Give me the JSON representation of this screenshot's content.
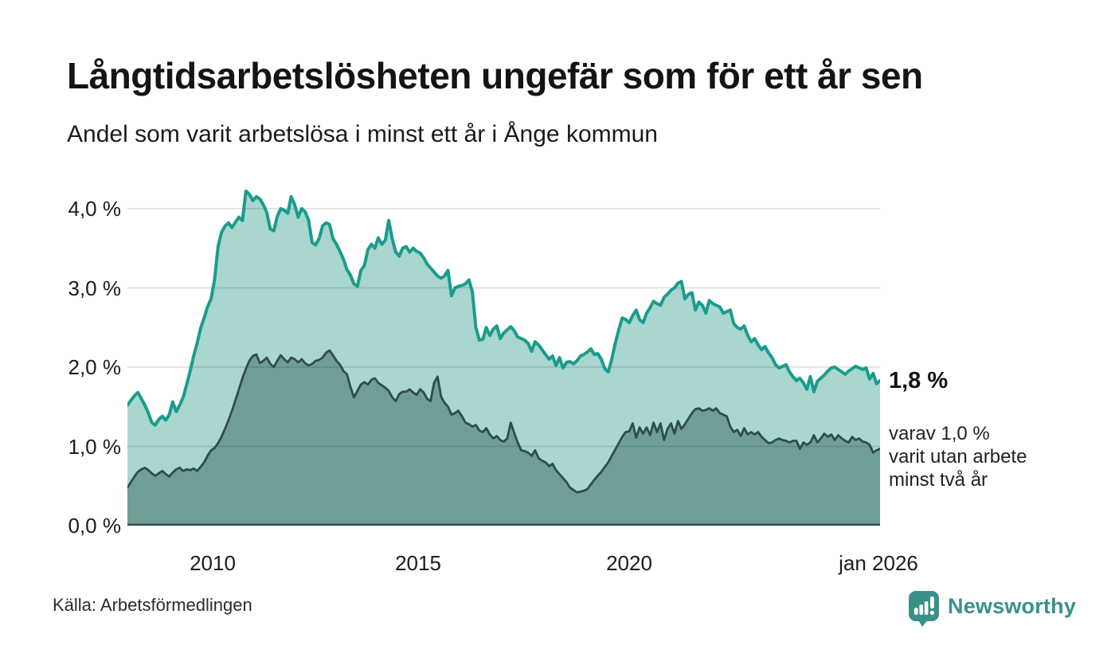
{
  "header": {
    "title": "Långtidsarbetslösheten ungefär som för ett år sen",
    "subtitle": "Andel som varit arbetslösa i minst ett år i Ånge kommun"
  },
  "chart": {
    "y_ticks": [
      "4,0 %",
      "3,0 %",
      "2,0 %",
      "1,0 %",
      "0,0 %"
    ],
    "x_ticks": [
      "2010",
      "2015",
      "2020",
      "jan 2026"
    ],
    "annotation_latest": "1,8 %",
    "annotation_sub_lines": [
      "varav 1,0 %",
      "varit utan arbete",
      "minst två år"
    ]
  },
  "footer": {
    "source": "Källa: Arbetsförmedlingen",
    "brand": "Newsworthy",
    "logo_icon": "bar-chart-speech-bubble-icon"
  },
  "colors": {
    "background": "#ffffff",
    "title_text": "#141414",
    "axis_text": "#1c1c1c",
    "gridline": "rgba(0,0,0,0.13)",
    "line_1yr": "#1a9c8d",
    "fill_1yr": "#a9d6cf",
    "line_2yr": "#2f4d48",
    "fill_2yr": "#6f9e97",
    "brand_teal": "#39918a"
  },
  "chart_data": {
    "type": "area",
    "title": "Långtidsarbetslösheten ungefär som för ett år sen",
    "subtitle": "Andel som varit arbetslösa i minst ett år i Ånge kommun",
    "unit": "%",
    "frequency": "monthly",
    "x_start": "2008-01",
    "x_end": "2026-01",
    "ylim": [
      0,
      4.3
    ],
    "y_gridlines": [
      1,
      2,
      3,
      4
    ],
    "x_tick_labels": [
      "2010",
      "2015",
      "2020",
      "jan 2026"
    ],
    "legend_position": "none",
    "grid": "horizontal",
    "latest": {
      "share_min_1yr": "1,8 %",
      "share_min_2yr": "1,0 %"
    },
    "series": [
      {
        "name": "Andel arbetslösa minst ett år",
        "color": "#1a9c8d",
        "fill": "#a9d6cf",
        "stroke_width": 4,
        "values": [
          1.52,
          1.58,
          1.64,
          1.68,
          1.6,
          1.52,
          1.42,
          1.3,
          1.27,
          1.34,
          1.38,
          1.33,
          1.4,
          1.56,
          1.44,
          1.52,
          1.62,
          1.78,
          1.95,
          2.14,
          2.3,
          2.49,
          2.62,
          2.76,
          2.86,
          3.1,
          3.52,
          3.7,
          3.78,
          3.82,
          3.76,
          3.83,
          3.89,
          3.85,
          4.22,
          4.18,
          4.1,
          4.15,
          4.12,
          4.05,
          3.95,
          3.74,
          3.72,
          3.9,
          4.0,
          3.98,
          3.94,
          4.15,
          4.05,
          3.89,
          4.0,
          3.96,
          3.85,
          3.57,
          3.54,
          3.62,
          3.78,
          3.82,
          3.8,
          3.62,
          3.55,
          3.46,
          3.36,
          3.23,
          3.16,
          3.05,
          3.02,
          3.22,
          3.28,
          3.48,
          3.55,
          3.5,
          3.63,
          3.55,
          3.6,
          3.85,
          3.62,
          3.45,
          3.4,
          3.5,
          3.52,
          3.45,
          3.5,
          3.46,
          3.44,
          3.38,
          3.3,
          3.25,
          3.2,
          3.15,
          3.12,
          3.15,
          3.22,
          2.9,
          3.0,
          3.02,
          3.03,
          3.05,
          3.1,
          2.95,
          2.5,
          2.34,
          2.35,
          2.5,
          2.4,
          2.48,
          2.52,
          2.36,
          2.43,
          2.47,
          2.51,
          2.46,
          2.38,
          2.36,
          2.34,
          2.3,
          2.2,
          2.32,
          2.28,
          2.22,
          2.16,
          2.1,
          2.14,
          2.02,
          2.12,
          1.99,
          2.06,
          2.07,
          2.04,
          2.08,
          2.14,
          2.16,
          2.19,
          2.23,
          2.16,
          2.17,
          2.1,
          1.98,
          1.94,
          2.1,
          2.3,
          2.47,
          2.62,
          2.6,
          2.56,
          2.65,
          2.72,
          2.6,
          2.56,
          2.68,
          2.75,
          2.83,
          2.8,
          2.78,
          2.88,
          2.92,
          2.97,
          3.0,
          3.06,
          3.08,
          2.86,
          2.92,
          2.94,
          2.72,
          2.82,
          2.78,
          2.68,
          2.84,
          2.8,
          2.78,
          2.76,
          2.68,
          2.7,
          2.72,
          2.55,
          2.5,
          2.48,
          2.52,
          2.4,
          2.32,
          2.36,
          2.28,
          2.22,
          2.26,
          2.18,
          2.12,
          2.03,
          1.99,
          2.01,
          2.03,
          1.94,
          1.88,
          1.83,
          1.86,
          1.8,
          1.72,
          1.88,
          1.69,
          1.82,
          1.86,
          1.9,
          1.95,
          1.99,
          2.0,
          1.97,
          1.94,
          1.91,
          1.95,
          1.98,
          2.01,
          1.99,
          1.97,
          1.99,
          1.85,
          1.92,
          1.79,
          1.83
        ]
      },
      {
        "name": "Andel arbetslösa minst två år",
        "color": "#2f4d48",
        "fill": "#6f9e97",
        "stroke_width": 2.8,
        "values": [
          0.48,
          0.55,
          0.62,
          0.68,
          0.71,
          0.73,
          0.7,
          0.66,
          0.63,
          0.66,
          0.69,
          0.65,
          0.62,
          0.67,
          0.71,
          0.73,
          0.69,
          0.71,
          0.7,
          0.72,
          0.69,
          0.74,
          0.8,
          0.88,
          0.95,
          0.98,
          1.04,
          1.12,
          1.22,
          1.33,
          1.45,
          1.58,
          1.72,
          1.86,
          1.98,
          2.08,
          2.14,
          2.16,
          2.05,
          2.08,
          2.12,
          2.04,
          2.0,
          2.08,
          2.15,
          2.1,
          2.06,
          2.12,
          2.1,
          2.06,
          2.1,
          2.05,
          2.02,
          2.04,
          2.08,
          2.09,
          2.12,
          2.18,
          2.21,
          2.15,
          2.08,
          2.03,
          1.95,
          1.91,
          1.75,
          1.62,
          1.7,
          1.78,
          1.81,
          1.78,
          1.84,
          1.86,
          1.8,
          1.77,
          1.74,
          1.7,
          1.62,
          1.57,
          1.66,
          1.69,
          1.69,
          1.72,
          1.68,
          1.65,
          1.72,
          1.68,
          1.6,
          1.57,
          1.8,
          1.88,
          1.63,
          1.55,
          1.5,
          1.4,
          1.42,
          1.45,
          1.38,
          1.3,
          1.28,
          1.25,
          1.27,
          1.2,
          1.18,
          1.23,
          1.15,
          1.1,
          1.13,
          1.08,
          1.06,
          1.1,
          1.3,
          1.17,
          1.05,
          0.95,
          0.94,
          0.92,
          0.88,
          0.95,
          0.85,
          0.82,
          0.8,
          0.75,
          0.78,
          0.7,
          0.65,
          0.6,
          0.55,
          0.48,
          0.45,
          0.42,
          0.43,
          0.44,
          0.46,
          0.52,
          0.58,
          0.63,
          0.68,
          0.74,
          0.8,
          0.88,
          0.96,
          1.04,
          1.12,
          1.18,
          1.19,
          1.29,
          1.11,
          1.24,
          1.16,
          1.24,
          1.14,
          1.3,
          1.18,
          1.29,
          1.08,
          1.22,
          1.29,
          1.16,
          1.32,
          1.22,
          1.28,
          1.35,
          1.42,
          1.47,
          1.48,
          1.45,
          1.46,
          1.48,
          1.45,
          1.48,
          1.42,
          1.4,
          1.38,
          1.25,
          1.18,
          1.21,
          1.13,
          1.23,
          1.15,
          1.18,
          1.15,
          1.18,
          1.12,
          1.08,
          1.04,
          1.05,
          1.08,
          1.1,
          1.08,
          1.07,
          1.05,
          1.07,
          1.07,
          0.97,
          1.05,
          1.02,
          1.05,
          1.14,
          1.05,
          1.1,
          1.16,
          1.12,
          1.15,
          1.08,
          1.14,
          1.1,
          1.07,
          1.05,
          1.12,
          1.08,
          1.1,
          1.06,
          1.05,
          1.02,
          0.92,
          0.95,
          0.97
        ]
      }
    ]
  }
}
